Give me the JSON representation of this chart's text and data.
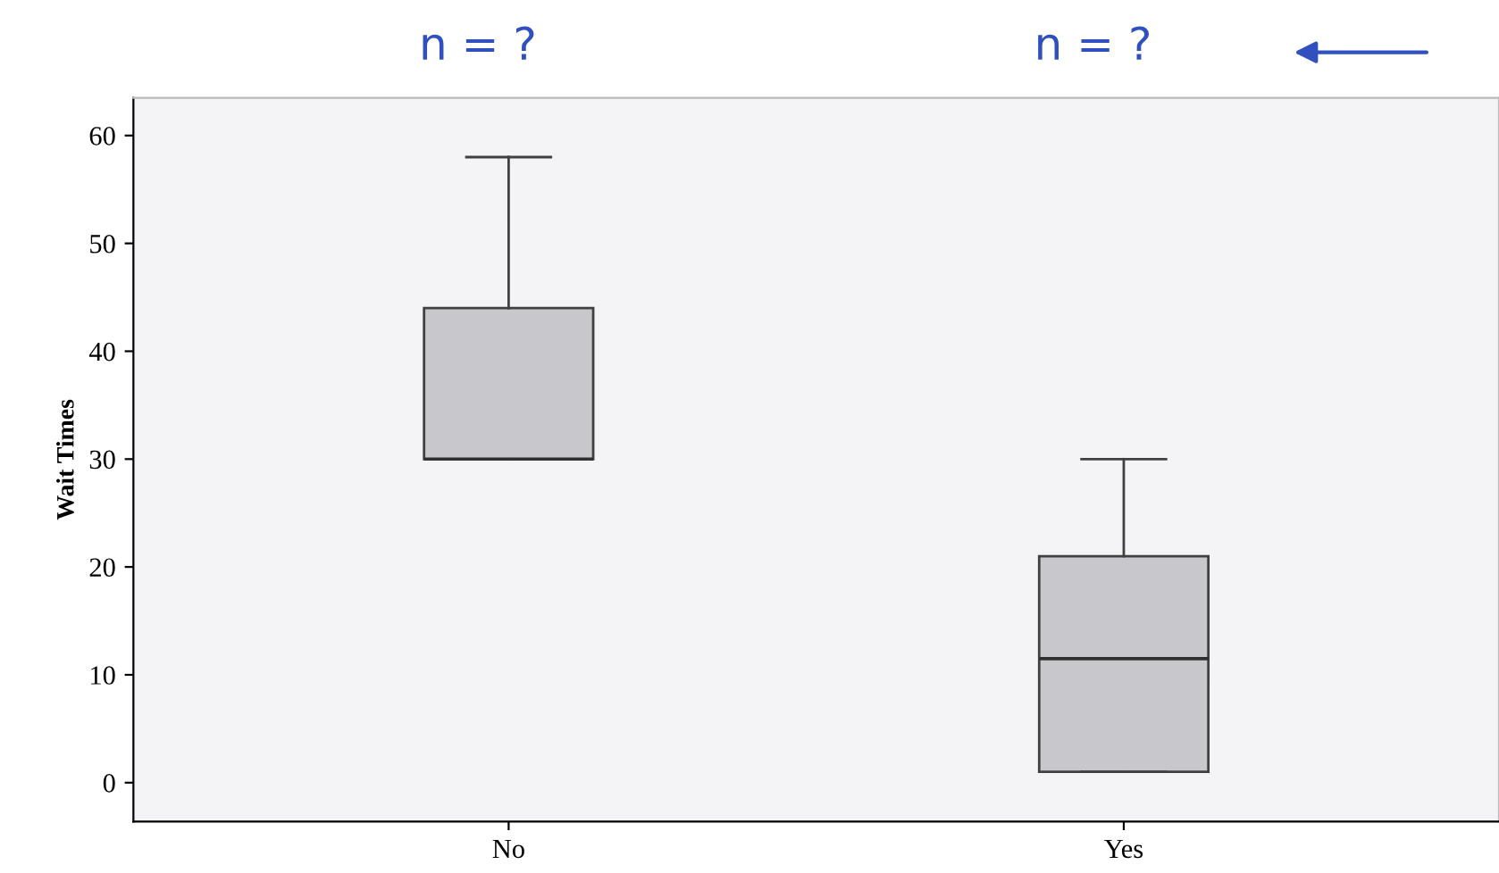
{
  "chart_data": {
    "type": "box",
    "ylabel": "Wait Times",
    "categories": [
      "No",
      "Yes"
    ],
    "boxes": [
      {
        "low": 30,
        "q1": 30,
        "median": 30,
        "q3": 44,
        "high": 58
      },
      {
        "low": 1,
        "q1": 1,
        "median": 11.5,
        "q3": 21,
        "high": 30
      }
    ],
    "color": "#c8c8cc",
    "ylim": [
      -3.6,
      63.5
    ],
    "yticks": [
      0,
      10,
      20,
      30,
      40,
      50,
      60
    ],
    "annotations": [
      "n = ?",
      "n = ?"
    ]
  }
}
